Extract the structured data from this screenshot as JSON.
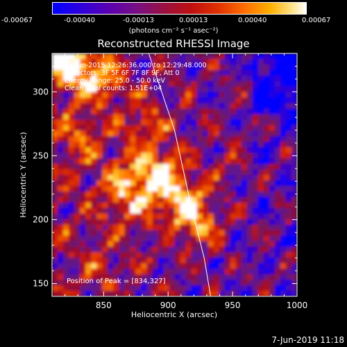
{
  "colorbar": {
    "ticks": [
      "-0.00067",
      "-0.00040",
      "-0.00013",
      "0.00013",
      "0.00040",
      "0.00067"
    ],
    "unit_label": "(photons cm⁻² s⁻¹ asec⁻²)"
  },
  "footer": {
    "timestamp": "7-Jun-2019 11:18"
  },
  "chart_data": {
    "type": "heatmap",
    "title": "Reconstructed RHESSI Image",
    "xlabel": "Heliocentric X (arcsec)",
    "ylabel": "Heliocentric Y (arcsec)",
    "xlim": [
      810,
      1000
    ],
    "ylim": [
      140,
      330
    ],
    "xticks": [
      850,
      900,
      950,
      1000
    ],
    "yticks": [
      150,
      200,
      250,
      300
    ],
    "colormap": "IDL rainbow/hot-style: blue to purple to red to orange to yellow to white",
    "color_range": [
      -0.00067,
      0.00067
    ],
    "annotations": [
      "13-Jun-2015 12:26:36.000 to 12:29:48.000",
      "Detectors: 3F 5F 6F 7F 8F 9F, Att 0",
      "Energy Range: 25.0 - 50.0 keV",
      "Clean     Total counts: 1.51E+04"
    ],
    "peak_label": "Position of Peak = [834,327]",
    "peak": {
      "x": 834,
      "y": 327
    },
    "limb_line": [
      [
        885,
        330
      ],
      [
        905,
        270
      ],
      [
        918,
        210
      ],
      [
        928,
        170
      ],
      [
        933,
        140
      ]
    ]
  }
}
